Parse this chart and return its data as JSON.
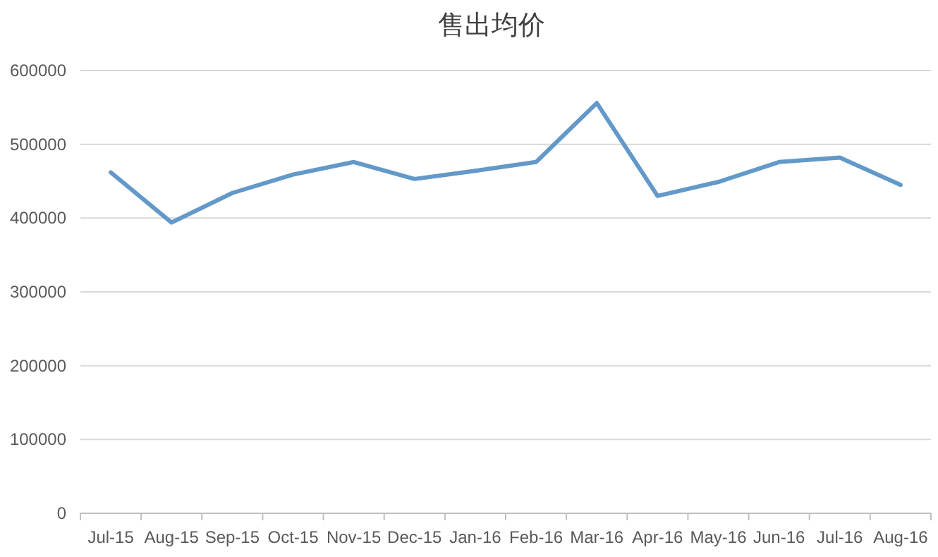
{
  "chart_data": {
    "type": "line",
    "title": "售出均价",
    "categories": [
      "Jul-15",
      "Aug-15",
      "Sep-15",
      "Oct-15",
      "Nov-15",
      "Dec-15",
      "Jan-16",
      "Feb-16",
      "Mar-16",
      "Apr-16",
      "May-16",
      "Jun-16",
      "Jul-16",
      "Aug-16"
    ],
    "series": [
      {
        "color": "#6399c9",
        "values": [
          462000,
          394000,
          434000,
          459000,
          476000,
          453000,
          464000,
          476000,
          556000,
          430000,
          449000,
          476000,
          482000,
          445000
        ]
      }
    ],
    "ylim": [
      0,
      600000
    ],
    "yticks": [
      0,
      100000,
      200000,
      300000,
      400000,
      500000,
      600000
    ],
    "grid": "y",
    "marker": "none",
    "line_style": "solid"
  }
}
